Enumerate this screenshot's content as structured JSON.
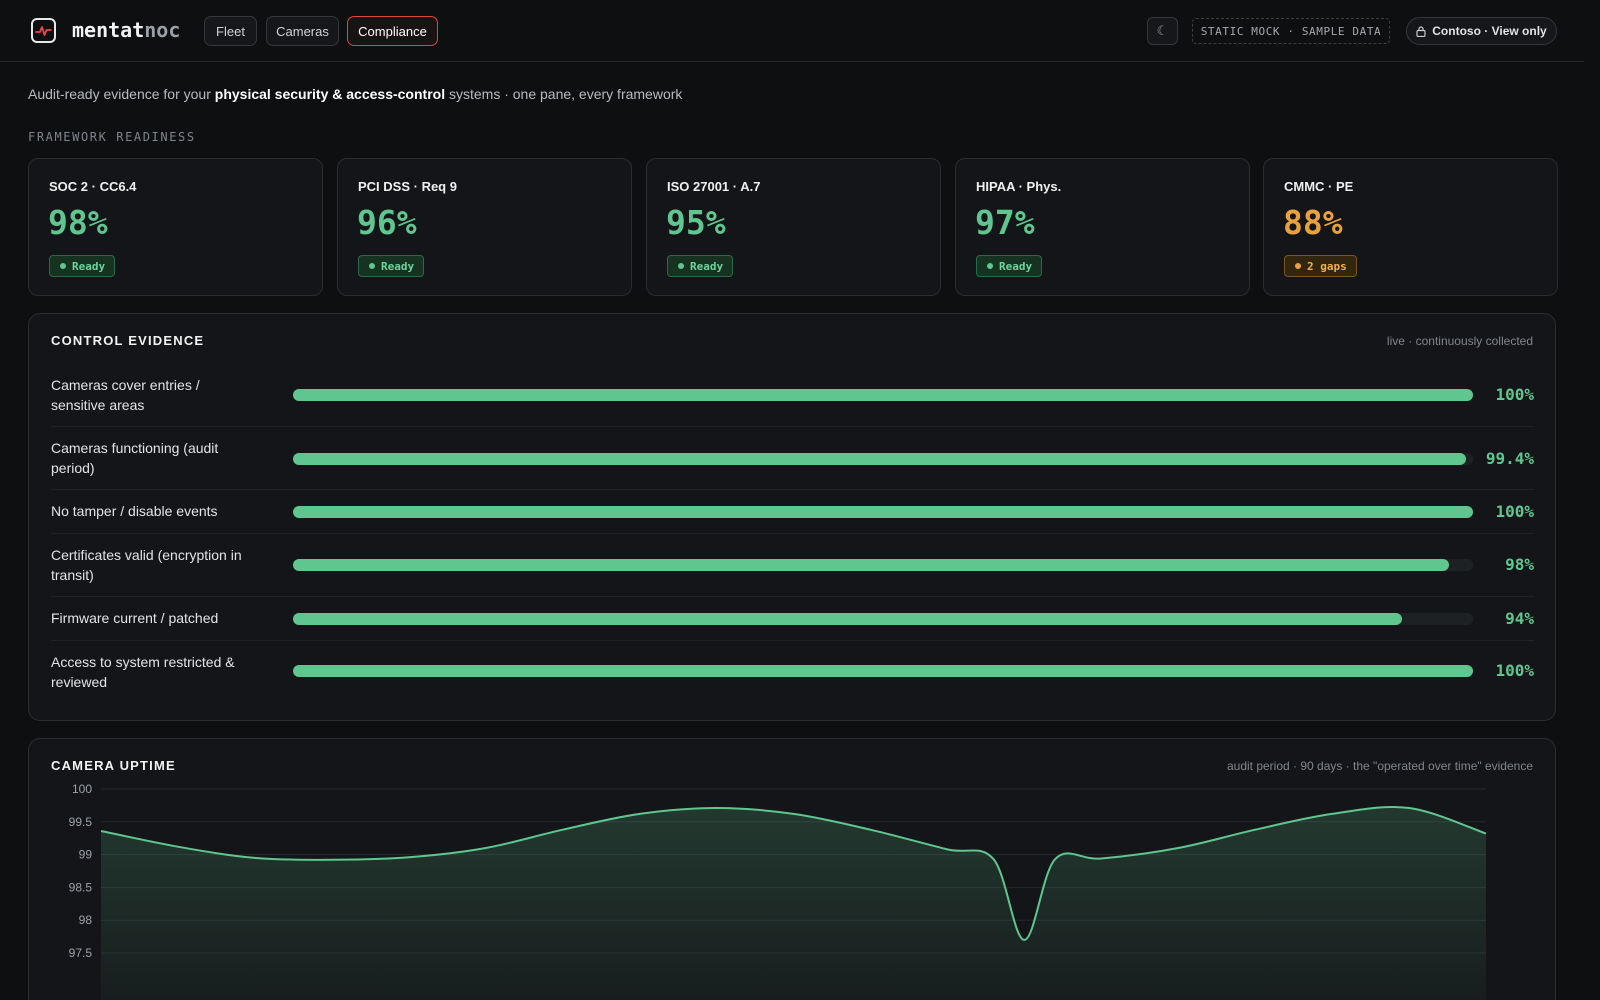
{
  "header": {
    "brand_part1": "mentat",
    "brand_part2": "noc",
    "tabs": [
      {
        "label": "Fleet"
      },
      {
        "label": "Cameras"
      },
      {
        "label": "Compliance"
      }
    ],
    "theme_icon": "☾",
    "mock_badge": "STATIC MOCK · SAMPLE DATA",
    "user_label": "Contoso · View only",
    "colors": {
      "accent": "#d9473f",
      "ok": "#5ec68e",
      "warn": "#e9a23b"
    }
  },
  "intro": {
    "prefix": "Audit-ready evidence for your ",
    "emphasis": "physical security & access-control",
    "suffix": " systems · one pane, every framework"
  },
  "frameworks": {
    "section_label": "FRAMEWORK READINESS",
    "items": [
      {
        "name": "SOC 2 · CC6.4",
        "pct": "98%",
        "status": "Ready"
      },
      {
        "name": "PCI DSS · Req 9",
        "pct": "96%",
        "status": "Ready"
      },
      {
        "name": "ISO 27001 · A.7",
        "pct": "95%",
        "status": "Ready"
      },
      {
        "name": "HIPAA · Phys.",
        "pct": "97%",
        "status": "Ready"
      },
      {
        "name": "CMMC · PE",
        "pct": "88%",
        "status": "2 gaps"
      }
    ]
  },
  "evidence": {
    "title": "CONTROL EVIDENCE",
    "note": "live · continuously collected",
    "rows": [
      {
        "label": "Cameras cover entries / sensitive areas",
        "pct": "100%",
        "value": 100
      },
      {
        "label": "Cameras functioning (audit period)",
        "pct": "99.4%",
        "value": 99.4
      },
      {
        "label": "No tamper / disable events",
        "pct": "100%",
        "value": 100
      },
      {
        "label": "Certificates valid (encryption in transit)",
        "pct": "98%",
        "value": 98
      },
      {
        "label": "Firmware current / patched",
        "pct": "94%",
        "value": 94
      },
      {
        "label": "Access to system restricted & reviewed",
        "pct": "100%",
        "value": 100
      }
    ]
  },
  "uptime": {
    "title": "CAMERA UPTIME",
    "note": "audit period · 90 days · the \"operated over time\" evidence"
  },
  "chart_data": {
    "type": "area",
    "title": "CAMERA UPTIME",
    "xlabel": "",
    "ylabel": "",
    "ylim": [
      97.5,
      100
    ],
    "yticks": [
      "100",
      "99.5",
      "99",
      "98.5",
      "98",
      "97.5"
    ],
    "grid": true,
    "x": [
      0,
      5,
      10,
      15,
      20,
      25,
      30,
      35,
      40,
      45,
      50,
      55,
      58,
      60,
      62,
      65,
      70,
      75,
      80,
      85,
      90
    ],
    "series": [
      {
        "values": [
          99.36,
          99.12,
          98.95,
          98.92,
          98.96,
          99.1,
          99.38,
          99.62,
          99.71,
          99.62,
          99.38,
          99.08,
          98.93,
          97.7,
          98.93,
          98.94,
          99.1,
          99.38,
          99.62,
          99.71,
          99.32
        ],
        "color": "#5ec68e"
      }
    ]
  }
}
